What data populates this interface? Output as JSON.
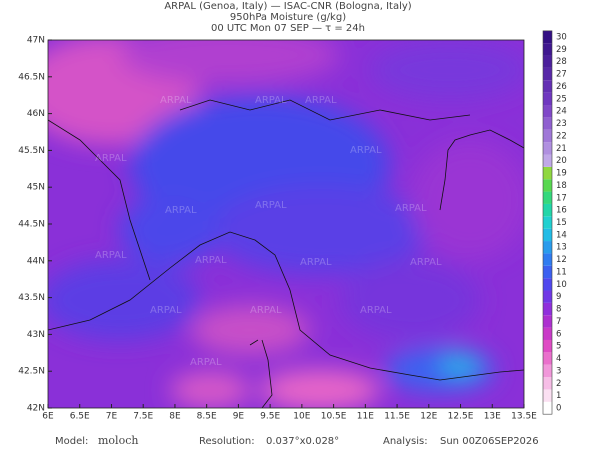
{
  "header": {
    "lines": [
      "ARPAL (Genoa, Italy)  —  ISAC-CNR (Bologna, Italy)",
      "950hPa Moisture (g/kg)",
      "00 UTC Mon 07 SEP  —  τ = 24h"
    ]
  },
  "map": {
    "lat_ticks": [
      {
        "value": 47,
        "label": "47N"
      },
      {
        "value": 46.5,
        "label": "46.5N"
      },
      {
        "value": 46,
        "label": "46N"
      },
      {
        "value": 45.5,
        "label": "45.5N"
      },
      {
        "value": 45,
        "label": "45N"
      },
      {
        "value": 44.5,
        "label": "44.5N"
      },
      {
        "value": 44,
        "label": "44N"
      },
      {
        "value": 43.5,
        "label": "43.5N"
      },
      {
        "value": 43,
        "label": "43N"
      },
      {
        "value": 42.5,
        "label": "42.5N"
      },
      {
        "value": 42,
        "label": "42N"
      }
    ],
    "lon_ticks": [
      {
        "value": 6,
        "label": "6E"
      },
      {
        "value": 6.5,
        "label": "6.5E"
      },
      {
        "value": 7,
        "label": "7E"
      },
      {
        "value": 7.5,
        "label": "7.5E"
      },
      {
        "value": 8,
        "label": "8E"
      },
      {
        "value": 8.5,
        "label": "8.5E"
      },
      {
        "value": 9,
        "label": "9E"
      },
      {
        "value": 9.5,
        "label": "9.5E"
      },
      {
        "value": 10,
        "label": "10E"
      },
      {
        "value": 10.5,
        "label": "10.5E"
      },
      {
        "value": 11,
        "label": "11E"
      },
      {
        "value": 11.5,
        "label": "11.5E"
      },
      {
        "value": 12,
        "label": "12E"
      },
      {
        "value": 12.5,
        "label": "12.5E"
      },
      {
        "value": 13,
        "label": "13E"
      },
      {
        "value": 13.5,
        "label": "13.5E"
      }
    ],
    "lat_range": [
      42,
      47
    ],
    "lon_range": [
      6,
      13.5
    ],
    "watermark": "ARPAL"
  },
  "colorbar": {
    "ticks": [
      0,
      1,
      2,
      3,
      4,
      5,
      6,
      7,
      8,
      9,
      10,
      11,
      12,
      13,
      14,
      15,
      16,
      17,
      18,
      19,
      20,
      21,
      22,
      23,
      24,
      25,
      26,
      27,
      28,
      29,
      30
    ],
    "colors": [
      "#ffffff",
      "#fbe0f2",
      "#f6bde6",
      "#f197da",
      "#ea70cc",
      "#df4cc4",
      "#c93ac8",
      "#ad30d0",
      "#9030dc",
      "#7038e6",
      "#5048ee",
      "#3c60f0",
      "#307cf0",
      "#2a9cec",
      "#22bce6",
      "#20d0d0",
      "#22d6a8",
      "#34d87c",
      "#58d850",
      "#90d840",
      "#c0a8e8",
      "#b090e0",
      "#a078d8",
      "#9060d0",
      "#8048c8",
      "#7038c0",
      "#6430b4",
      "#5828a8",
      "#4c209c",
      "#401890",
      "#341084"
    ]
  },
  "footer": {
    "model_label": "Model:",
    "model": "moloch",
    "resolution_label": "Resolution:",
    "resolution": "0.037°x0.028°",
    "analysis_label": "Analysis:",
    "analysis": "Sun 00Z06SEP2026"
  }
}
